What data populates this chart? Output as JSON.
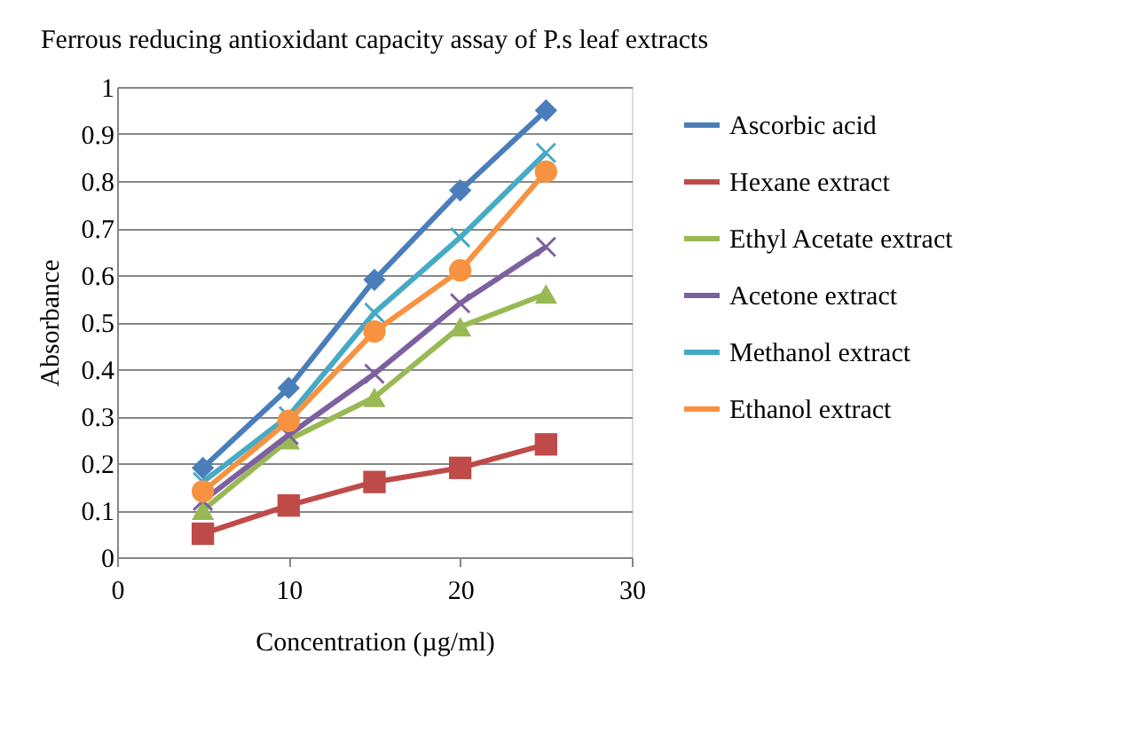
{
  "chart_data": {
    "type": "line",
    "title": "Ferrous reducing antioxidant capacity assay of P.s leaf extracts",
    "xlabel": "Concentration (µg/ml)",
    "ylabel": "Absorbance",
    "x": [
      5,
      10,
      15,
      20,
      25
    ],
    "series": [
      {
        "name": "Ascorbic acid",
        "color": "#4a7ebb",
        "marker": "diamond",
        "values": [
          0.19,
          0.36,
          0.59,
          0.78,
          0.95
        ]
      },
      {
        "name": "Hexane extract",
        "color": "#be4b48",
        "marker": "square",
        "values": [
          0.05,
          0.11,
          0.16,
          0.19,
          0.24
        ]
      },
      {
        "name": "Ethyl Acetate extract",
        "color": "#98b954",
        "marker": "triangle",
        "values": [
          0.1,
          0.25,
          0.34,
          0.49,
          0.56
        ]
      },
      {
        "name": "Acetone extract",
        "color": "#7d60a0",
        "marker": "cross",
        "values": [
          0.12,
          0.26,
          0.39,
          0.54,
          0.66
        ]
      },
      {
        "name": "Methanol extract",
        "color": "#46aac5",
        "marker": "cross",
        "values": [
          0.16,
          0.3,
          0.52,
          0.68,
          0.86
        ]
      },
      {
        "name": "Ethanol extract",
        "color": "#f69240",
        "marker": "circle",
        "values": [
          0.14,
          0.29,
          0.48,
          0.61,
          0.82
        ]
      }
    ],
    "xlim": [
      0,
      30
    ],
    "xticks": [
      0,
      10,
      20,
      30
    ],
    "ylim": [
      0,
      1
    ],
    "yticks": [
      0,
      0.1,
      0.2,
      0.3,
      0.4,
      0.5,
      0.6,
      0.7,
      0.8,
      0.9,
      1
    ],
    "grid": "y",
    "legend": "right",
    "line_style": "solid"
  }
}
